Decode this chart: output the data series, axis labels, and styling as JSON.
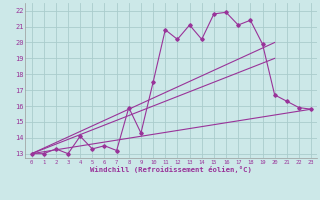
{
  "xlabel": "Windchill (Refroidissement éolien,°C)",
  "background_color": "#cce8e8",
  "grid_color": "#aacccc",
  "line_color": "#993399",
  "xlim": [
    -0.5,
    23.5
  ],
  "ylim": [
    12.7,
    22.5
  ],
  "yticks": [
    13,
    14,
    15,
    16,
    17,
    18,
    19,
    20,
    21,
    22
  ],
  "xticks": [
    0,
    1,
    2,
    3,
    4,
    5,
    6,
    7,
    8,
    9,
    10,
    11,
    12,
    13,
    14,
    15,
    16,
    17,
    18,
    19,
    20,
    21,
    22,
    23
  ],
  "line1_x": [
    0,
    1,
    2,
    3,
    4,
    5,
    6,
    7,
    8,
    9,
    10,
    11,
    12,
    13,
    14,
    15,
    16,
    17,
    18,
    19,
    20,
    21,
    22,
    23
  ],
  "line1_y": [
    13.0,
    13.0,
    13.3,
    13.0,
    14.1,
    13.3,
    13.5,
    13.2,
    15.9,
    14.3,
    17.5,
    20.8,
    20.2,
    21.1,
    20.2,
    21.8,
    21.9,
    21.1,
    21.4,
    19.9,
    16.7,
    16.3,
    15.9,
    15.8
  ],
  "line2_x": [
    0,
    20
  ],
  "line2_y": [
    13.0,
    20.0
  ],
  "line3_x": [
    0,
    20
  ],
  "line3_y": [
    13.0,
    19.0
  ],
  "line4_x": [
    0,
    23
  ],
  "line4_y": [
    13.0,
    15.8
  ]
}
